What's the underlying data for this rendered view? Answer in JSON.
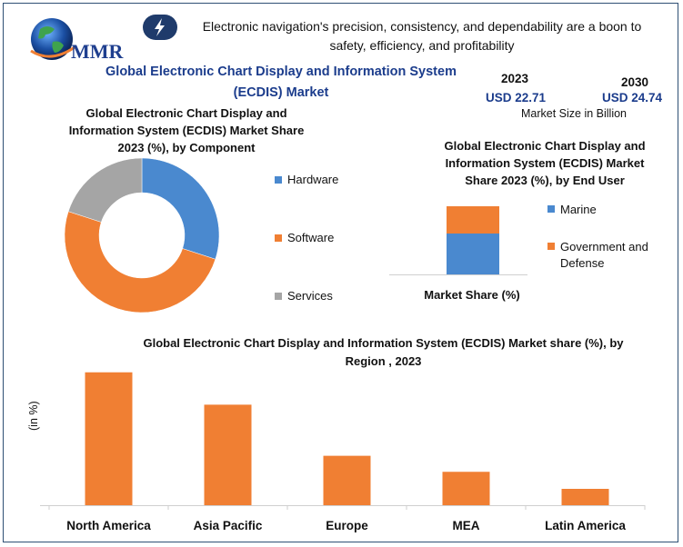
{
  "brand": {
    "name": "MMR",
    "highlight_color": "#1f5fbf"
  },
  "header": {
    "tagline": "Electronic navigation's precision, consistency, and dependability are a boon to safety, efficiency, and profitability",
    "icon": "lightning-bolt-icon",
    "main_title": "Global Electronic Chart Display and Information System (ECDIS) Market"
  },
  "market_size": {
    "year_a": "2023",
    "value_a": "USD 22.71",
    "year_b": "2030",
    "value_b": "USD 24.74",
    "caption": "Market Size in Billion"
  },
  "chart_data": [
    {
      "type": "pie",
      "title": "Global Electronic Chart Display and Information System (ECDIS) Market Share 2023 (%), by Component",
      "categories": [
        "Hardware",
        "Software",
        "Services"
      ],
      "values": [
        30,
        50,
        20
      ],
      "colors": [
        "#4a89cf",
        "#f07f33",
        "#a5a5a5"
      ],
      "donut": true,
      "legend_position": "right"
    },
    {
      "type": "bar",
      "stacked": true,
      "title": "Global Electronic Chart Display and Information System (ECDIS) Market Share 2023 (%), by End User",
      "xlabel": "Market Share (%)",
      "categories": [
        ""
      ],
      "series": [
        {
          "name": "Marine",
          "values": [
            60
          ],
          "color": "#4a89cf"
        },
        {
          "name": "Government and Defense",
          "values": [
            40
          ],
          "color": "#f07f33"
        }
      ],
      "ylim": [
        0,
        100
      ],
      "legend_position": "right"
    },
    {
      "type": "bar",
      "title": "Global Electronic Chart Display and Information System (ECDIS) Market share (%), by Region , 2023",
      "ylabel": "(in %)",
      "categories": [
        "North America",
        "Asia Pacific",
        "Europe",
        "MEA",
        "Latin America"
      ],
      "values": [
        39,
        29.5,
        14.5,
        9.8,
        4.8
      ],
      "ylim": [
        0,
        40
      ],
      "color": "#f07f33",
      "grid": false
    }
  ]
}
